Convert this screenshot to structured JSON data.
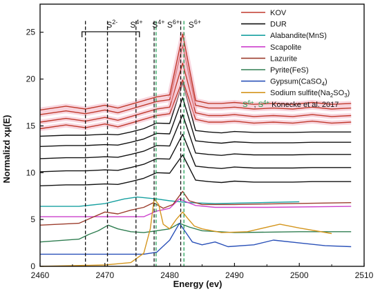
{
  "chart_data": {
    "type": "line",
    "xlabel": "Energy  (ev)",
    "ylabel": "Normalizd xμ(E)",
    "xlim": [
      2460,
      2510
    ],
    "ylim": [
      0,
      28
    ],
    "xticks": [
      2460,
      2470,
      2480,
      2490,
      2500,
      2510
    ],
    "yticks": [
      0,
      5,
      10,
      15,
      20,
      25
    ],
    "grid": false,
    "legend_position": "top-right",
    "legend": [
      {
        "label": "KOV",
        "color": "#c0392b"
      },
      {
        "label": "DUR",
        "color": "#111111"
      },
      {
        "label": "Alabandite(MnS)",
        "color": "#16a0a0"
      },
      {
        "label": "Scapolite",
        "color": "#cc3fcc"
      },
      {
        "label": "Lazurite",
        "color": "#9b3c2c"
      },
      {
        "label": "Pyrite(FeS)",
        "color": "#2e7d50"
      },
      {
        "label": "Gypsum(CaSO",
        "sub": "4",
        "after": ")",
        "color": "#2950b8"
      },
      {
        "label": "Sodium sulfite(Na",
        "sub": "2",
        "mid": "SO",
        "sub2": "3",
        "after": ")",
        "color": "#d4951c"
      }
    ],
    "legend_note": {
      "s6": "S",
      "s6sup": "6+",
      "sep": ", ",
      "s4": "S",
      "s4sup": "4+",
      "text": " Konecke et al. 2017"
    },
    "annotations": {
      "s2": {
        "base": "S",
        "sup": "2-"
      },
      "s4_black": {
        "base": "S",
        "sup": "4+"
      },
      "s4_green": {
        "base": "S",
        "sup": "4+"
      },
      "s6_black": {
        "base": "S",
        "sup": "6+"
      },
      "s6_green": {
        "base": "S",
        "sup": "6+"
      }
    },
    "reference_lines": [
      {
        "x": 2467.0,
        "color": "#111111"
      },
      {
        "x": 2470.4,
        "color": "#111111"
      },
      {
        "x": 2474.8,
        "color": "#111111"
      },
      {
        "x": 2477.6,
        "color": "#111111"
      },
      {
        "x": 2477.9,
        "color": "#1f9e55"
      },
      {
        "x": 2481.7,
        "color": "#111111"
      },
      {
        "x": 2482.2,
        "color": "#1f9e55"
      }
    ],
    "series": [
      {
        "group": "DUR",
        "color": "#111111",
        "offset": 8.7,
        "rel": [
          -0.1,
          0.0,
          0.0,
          0.1,
          0.05,
          0.35,
          0.7,
          1.3,
          1.25,
          3.2,
          0.5,
          0.35,
          0.25,
          0.4,
          0.3,
          0.3,
          0.3,
          0.35,
          0.35,
          0.35
        ]
      },
      {
        "group": "DUR",
        "color": "#111111",
        "offset": 10.2,
        "rel": [
          -0.1,
          0.0,
          0.0,
          0.1,
          0.05,
          0.35,
          0.7,
          1.3,
          1.25,
          3.9,
          0.5,
          0.35,
          0.25,
          0.4,
          0.3,
          0.3,
          0.3,
          0.35,
          0.35,
          0.35
        ]
      },
      {
        "group": "DUR",
        "color": "#111111",
        "offset": 11.6,
        "rel": [
          -0.1,
          0.0,
          0.0,
          0.1,
          0.05,
          0.35,
          0.7,
          1.3,
          1.25,
          4.6,
          0.5,
          0.35,
          0.25,
          0.4,
          0.3,
          0.3,
          0.3,
          0.35,
          0.35,
          0.35
        ]
      },
      {
        "group": "DUR",
        "color": "#111111",
        "offset": 12.9,
        "rel": [
          -0.1,
          0.0,
          0.0,
          0.1,
          0.05,
          0.35,
          0.7,
          1.3,
          1.25,
          5.1,
          0.5,
          0.35,
          0.25,
          0.4,
          0.3,
          0.3,
          0.3,
          0.35,
          0.35,
          0.35
        ]
      },
      {
        "group": "DUR",
        "color": "#111111",
        "offset": 14.0,
        "rel": [
          -0.1,
          0.0,
          0.0,
          0.1,
          0.05,
          0.35,
          0.7,
          1.3,
          1.25,
          5.6,
          0.5,
          0.35,
          0.25,
          0.4,
          0.3,
          0.3,
          0.3,
          0.35,
          0.35,
          0.35
        ]
      },
      {
        "group": "KOV",
        "color": "#c0392b",
        "offset": 14.7,
        "rel": [
          0.0,
          0.4,
          0.1,
          0.5,
          0.2,
          0.6,
          1.0,
          1.4,
          1.6,
          5.2,
          1.0,
          0.7,
          0.7,
          0.8,
          0.6,
          0.7,
          0.6,
          0.8,
          0.6,
          0.7
        ]
      },
      {
        "group": "KOV",
        "color": "#c0392b",
        "offset": 15.4,
        "rel": [
          0.0,
          0.4,
          0.1,
          0.5,
          0.2,
          0.6,
          1.0,
          1.4,
          1.6,
          6.3,
          1.0,
          0.7,
          0.7,
          0.8,
          0.6,
          0.7,
          0.6,
          0.8,
          0.6,
          0.7
        ]
      },
      {
        "group": "KOV",
        "color": "#c0392b",
        "offset": 16.2,
        "rel": [
          0.0,
          0.4,
          0.1,
          0.5,
          0.2,
          0.6,
          1.0,
          1.4,
          1.6,
          7.4,
          1.0,
          0.7,
          0.7,
          0.8,
          0.6,
          0.7,
          0.6,
          0.8,
          0.6,
          0.7
        ]
      },
      {
        "group": "KOV",
        "color": "#c0392b",
        "offset": 16.7,
        "rel": [
          0.0,
          0.4,
          0.1,
          0.5,
          0.2,
          0.6,
          1.0,
          1.4,
          1.6,
          8.1,
          1.0,
          0.7,
          0.7,
          0.8,
          0.6,
          0.7,
          0.6,
          0.8,
          0.6,
          0.7
        ]
      },
      {
        "group": "Alabandite(MnS)",
        "color": "#16a0a0",
        "pts": [
          [
            2460,
            6.4
          ],
          [
            2466,
            6.4
          ],
          [
            2470,
            6.7
          ],
          [
            2473,
            7.2
          ],
          [
            2475,
            7.4
          ],
          [
            2478,
            7.2
          ],
          [
            2480,
            7.0
          ],
          [
            2483,
            6.8
          ],
          [
            2487,
            6.7
          ],
          [
            2500,
            6.9
          ]
        ]
      },
      {
        "group": "Scapolite",
        "color": "#cc3fcc",
        "pts": [
          [
            2460,
            5.3
          ],
          [
            2476,
            5.3
          ],
          [
            2478,
            5.9
          ],
          [
            2480,
            6.2
          ],
          [
            2481.5,
            7.2
          ],
          [
            2482.5,
            6.9
          ],
          [
            2484,
            6.5
          ],
          [
            2487,
            6.3
          ],
          [
            2495,
            6.3
          ],
          [
            2508,
            6.4
          ]
        ]
      },
      {
        "group": "Lazurite",
        "color": "#9b3c2c",
        "pts": [
          [
            2460,
            4.4
          ],
          [
            2466,
            4.6
          ],
          [
            2468,
            5.2
          ],
          [
            2470,
            5.8
          ],
          [
            2472,
            5.6
          ],
          [
            2474,
            6.0
          ],
          [
            2476,
            6.3
          ],
          [
            2477.5,
            6.8
          ],
          [
            2479,
            6.2
          ],
          [
            2480.5,
            6.6
          ],
          [
            2482,
            8.0
          ],
          [
            2483,
            7.0
          ],
          [
            2485,
            6.6
          ],
          [
            2490,
            6.6
          ],
          [
            2508,
            6.8
          ]
        ]
      },
      {
        "group": "Pyrite(FeS)",
        "color": "#2e7d50",
        "pts": [
          [
            2460,
            2.6
          ],
          [
            2466,
            2.9
          ],
          [
            2467.5,
            3.4
          ],
          [
            2469,
            3.8
          ],
          [
            2470.5,
            4.4
          ],
          [
            2472,
            4.0
          ],
          [
            2474,
            3.7
          ],
          [
            2476,
            3.6
          ],
          [
            2478,
            3.8
          ],
          [
            2480,
            4.0
          ],
          [
            2481.5,
            4.6
          ],
          [
            2483,
            4.2
          ],
          [
            2485,
            3.8
          ],
          [
            2490,
            3.6
          ],
          [
            2500,
            3.7
          ],
          [
            2508,
            3.7
          ]
        ]
      },
      {
        "group": "Gypsum(CaSO4)",
        "color": "#2950b8",
        "pts": [
          [
            2460,
            1.3
          ],
          [
            2476,
            1.3
          ],
          [
            2478,
            1.5
          ],
          [
            2480,
            2.8
          ],
          [
            2481.5,
            4.6
          ],
          [
            2482.5,
            3.6
          ],
          [
            2483.5,
            2.6
          ],
          [
            2485,
            2.3
          ],
          [
            2487,
            2.6
          ],
          [
            2489,
            2.1
          ],
          [
            2493,
            2.3
          ],
          [
            2496,
            2.8
          ],
          [
            2500,
            2.5
          ],
          [
            2504,
            2.2
          ],
          [
            2508,
            2.1
          ]
        ]
      },
      {
        "group": "Sodium sulfite(Na2SO3)",
        "color": "#d4951c",
        "pts": [
          [
            2460,
            0.0
          ],
          [
            2470,
            0.15
          ],
          [
            2474,
            0.4
          ],
          [
            2476,
            1.4
          ],
          [
            2477,
            4.0
          ],
          [
            2477.6,
            7.2
          ],
          [
            2478.3,
            6.6
          ],
          [
            2479,
            4.5
          ],
          [
            2480,
            4.0
          ],
          [
            2481,
            5.0
          ],
          [
            2482,
            5.8
          ],
          [
            2482.8,
            5.1
          ],
          [
            2483.8,
            4.3
          ],
          [
            2485,
            4.0
          ],
          [
            2488,
            3.6
          ],
          [
            2492,
            3.7
          ],
          [
            2497,
            4.5
          ],
          [
            2500,
            4.1
          ],
          [
            2505,
            3.5
          ]
        ]
      }
    ]
  }
}
